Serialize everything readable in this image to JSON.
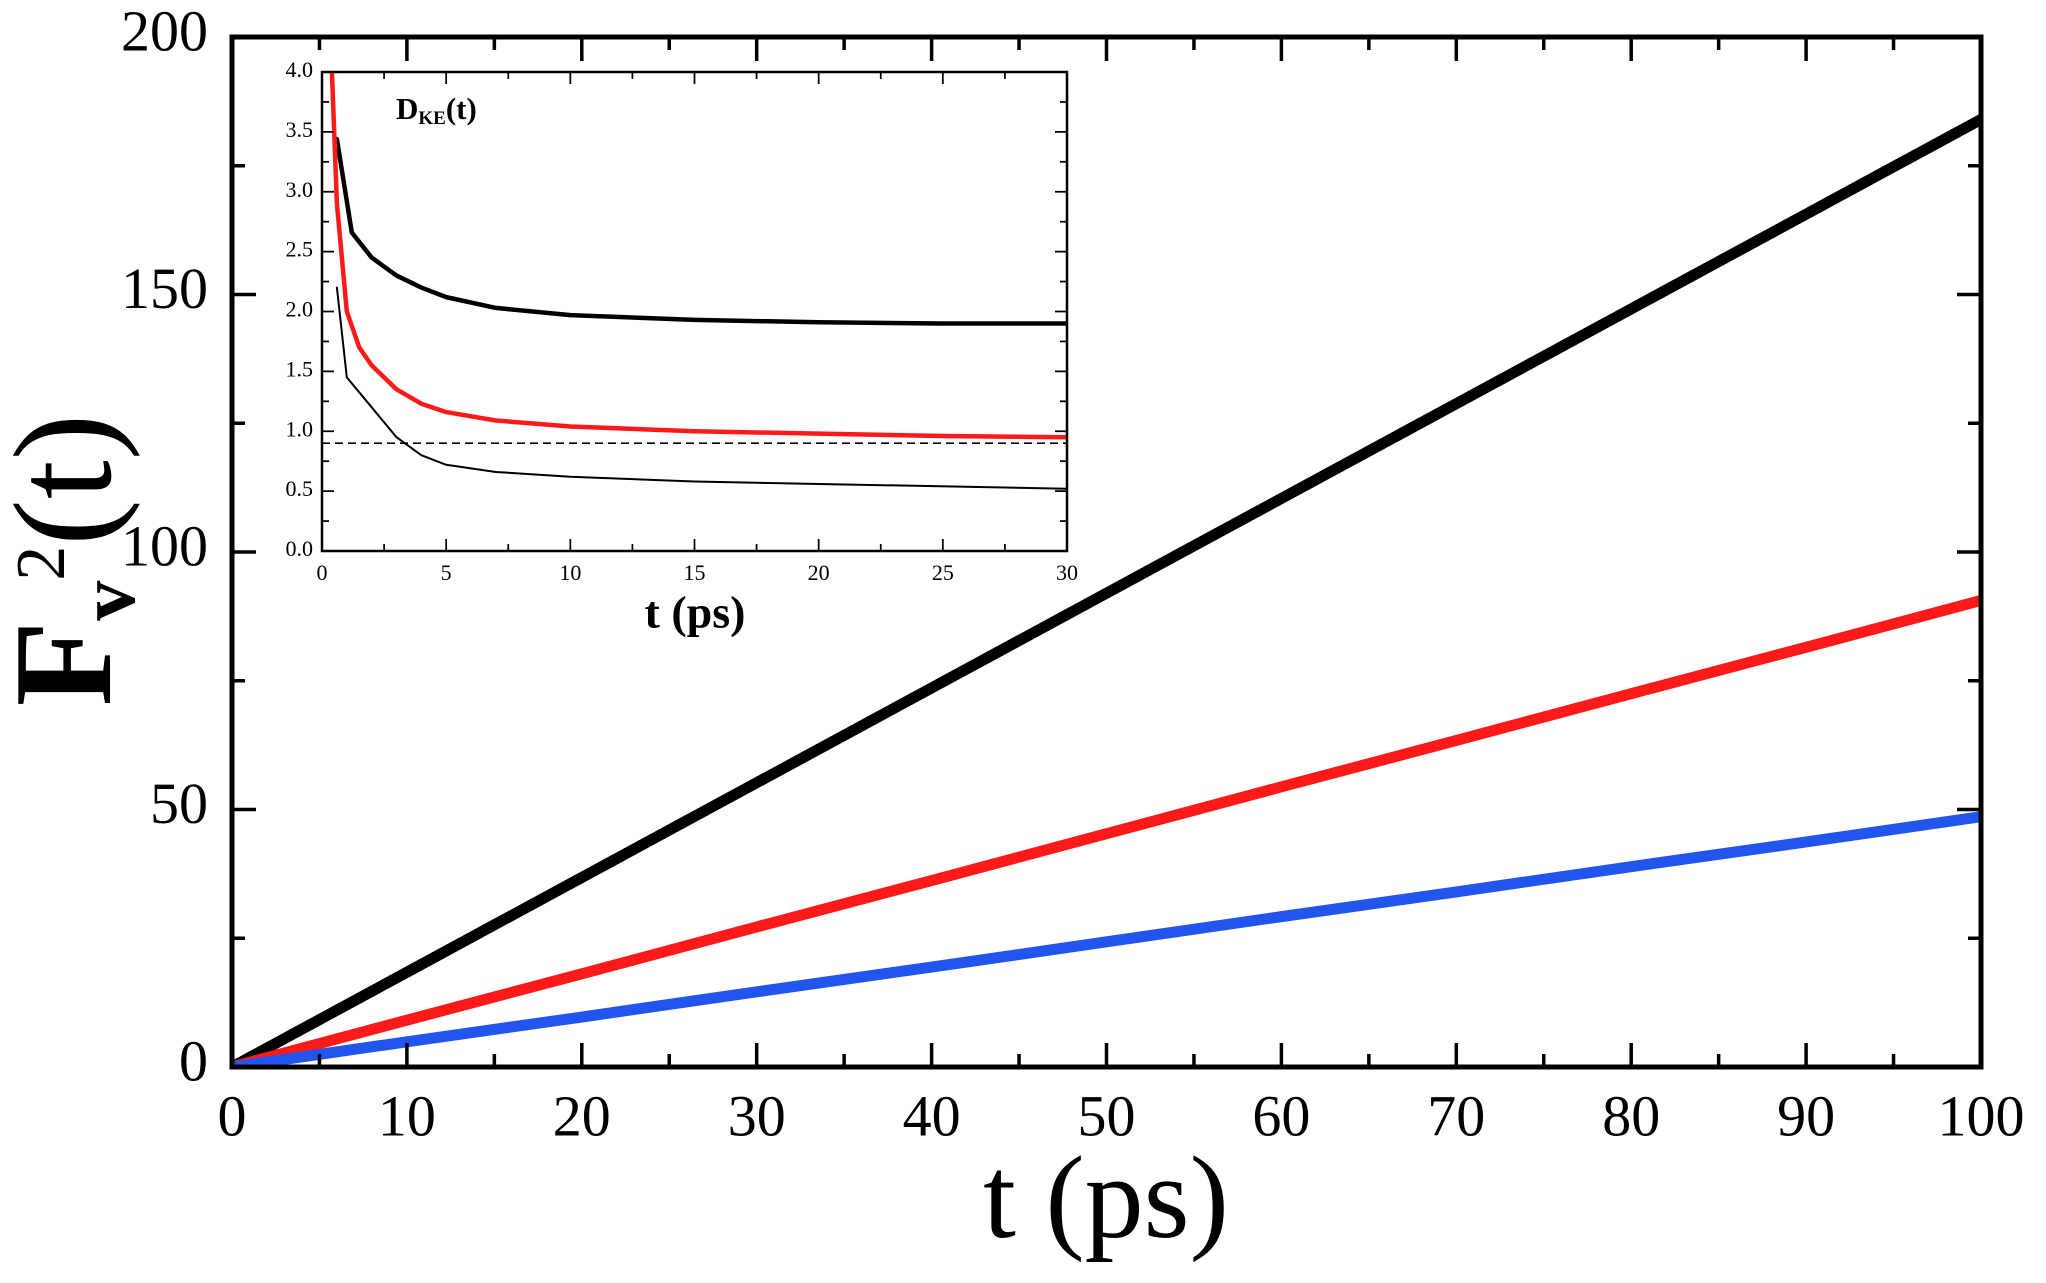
{
  "chart_data": [
    {
      "type": "line",
      "xlabel": "t (ps)",
      "ylabel": {
        "main": "F",
        "sub": "v",
        "sup": "2",
        "tail": "(t)"
      },
      "xlim": [
        0,
        100
      ],
      "ylim": [
        0,
        200
      ],
      "xticks": [
        0,
        10,
        20,
        30,
        40,
        50,
        60,
        70,
        80,
        90,
        100
      ],
      "yticks": [
        0,
        50,
        100,
        150,
        200
      ],
      "xminor": [
        5,
        15,
        25,
        35,
        45,
        55,
        65,
        75,
        85,
        95
      ],
      "yminor": [
        25,
        75,
        125,
        175
      ],
      "series": [
        {
          "color": "#000000",
          "linestyle": "thick",
          "x": [
            0,
            10,
            20,
            30,
            40,
            50,
            60,
            70,
            80,
            90,
            100
          ],
          "values": [
            0,
            18.4,
            36.8,
            55.2,
            73.6,
            92,
            110.4,
            128.8,
            147.2,
            165.6,
            184
          ]
        },
        {
          "color": "#ff1a1a",
          "linestyle": "thick",
          "x": [
            0,
            10,
            20,
            30,
            40,
            50,
            60,
            70,
            80,
            90,
            100
          ],
          "values": [
            0,
            9.1,
            18.1,
            27.2,
            36.2,
            45.3,
            54.4,
            63.4,
            72.5,
            81.5,
            90.6
          ]
        },
        {
          "color": "#2255ee",
          "linestyle": "thick",
          "x": [
            0,
            10,
            20,
            30,
            40,
            50,
            60,
            70,
            80,
            90,
            100
          ],
          "values": [
            0,
            4.9,
            9.7,
            14.6,
            19.4,
            24.3,
            29.2,
            34,
            38.9,
            43.7,
            48.6
          ]
        }
      ]
    },
    {
      "type": "line",
      "title": {
        "main": "D",
        "sub": "KE",
        "tail": "(t)"
      },
      "xlabel": "t (ps)",
      "xlim": [
        0,
        30
      ],
      "ylim": [
        0,
        4
      ],
      "xticks": [
        0,
        5,
        10,
        15,
        20,
        25,
        30
      ],
      "yticks": [
        {
          "value": 0,
          "label": "0.0"
        },
        0.5,
        {
          "value": 1,
          "label": "1.0"
        },
        1.5,
        {
          "value": 2,
          "label": "2.0"
        },
        2.5,
        {
          "value": 3,
          "label": "3.0"
        },
        3.5,
        {
          "value": 4,
          "label": "4.0"
        }
      ],
      "xminor": [
        2.5,
        7.5,
        12.5,
        17.5,
        22.5,
        27.5
      ],
      "yminor": [
        0.25,
        0.75,
        1.25,
        1.75,
        2.25,
        2.75,
        3.25,
        3.75
      ],
      "series": [
        {
          "color": "#000000",
          "linestyle": "thick",
          "x": [
            0.6,
            1.2,
            2,
            3,
            4,
            5,
            7,
            10,
            15,
            20,
            25,
            30
          ],
          "values": [
            3.44,
            2.66,
            2.45,
            2.3,
            2.2,
            2.12,
            2.03,
            1.97,
            1.93,
            1.91,
            1.9,
            1.9
          ]
        },
        {
          "color": "#ff1a1a",
          "linestyle": "thick",
          "x": [
            0.4,
            0.6,
            1,
            1.5,
            2,
            3,
            4,
            5,
            7,
            10,
            15,
            20,
            25,
            30
          ],
          "values": [
            4.0,
            2.9,
            2.0,
            1.7,
            1.55,
            1.35,
            1.23,
            1.16,
            1.09,
            1.04,
            1.0,
            0.98,
            0.96,
            0.95
          ]
        },
        {
          "color": "#000000",
          "linestyle": "thin",
          "x": [
            0.6,
            1,
            2,
            3,
            4,
            5,
            7,
            10,
            15,
            20,
            30
          ],
          "values": [
            2.2,
            1.45,
            1.2,
            0.95,
            0.8,
            0.72,
            0.66,
            0.62,
            0.58,
            0.56,
            0.52
          ]
        },
        {
          "color": "#000000",
          "linestyle": "dashed",
          "x": [
            0,
            30
          ],
          "values": [
            0.9,
            0.9
          ]
        }
      ]
    }
  ]
}
